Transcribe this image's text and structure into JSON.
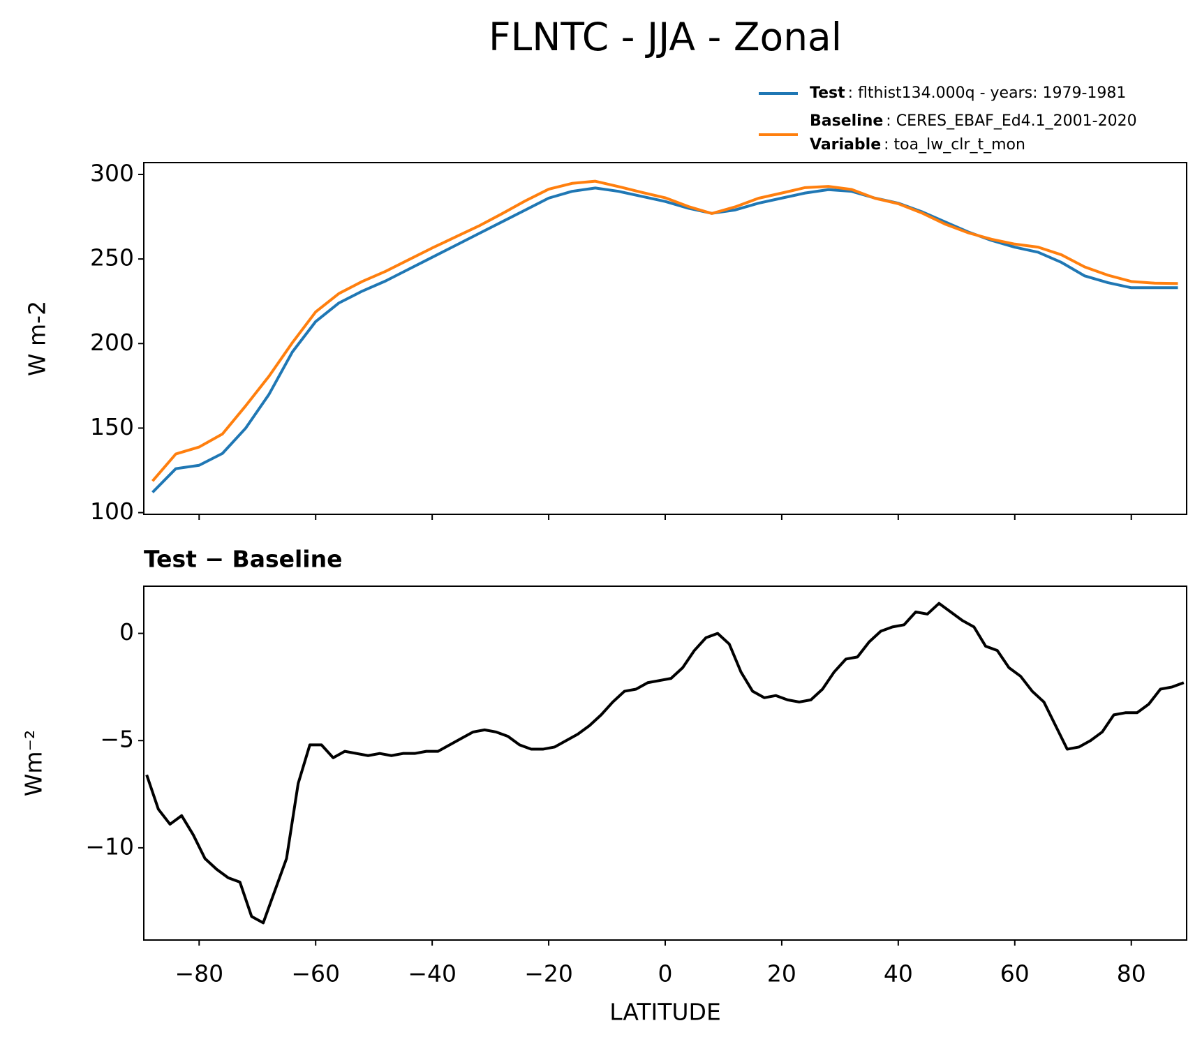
{
  "title": "FLNTC - JJA - Zonal",
  "chart_data": [
    {
      "type": "line",
      "y_label": "W m-2",
      "x": [
        -88,
        -84,
        -80,
        -76,
        -72,
        -68,
        -64,
        -60,
        -56,
        -52,
        -48,
        -44,
        -40,
        -36,
        -32,
        -28,
        -24,
        -20,
        -16,
        -12,
        -8,
        -4,
        0,
        4,
        8,
        12,
        16,
        20,
        24,
        28,
        32,
        36,
        40,
        44,
        48,
        52,
        56,
        60,
        64,
        68,
        72,
        76,
        80,
        84,
        88
      ],
      "series": [
        {
          "name": "Test",
          "description": ": flthist134.000q - years: 1979-1981",
          "color": "#1f77b4",
          "values": [
            112,
            126,
            128,
            135,
            150,
            170,
            195,
            213,
            224,
            231,
            237,
            244,
            251,
            258,
            265,
            272,
            279,
            286,
            290,
            292,
            290,
            287,
            284,
            280,
            277,
            279,
            283,
            286,
            289,
            291,
            290,
            286,
            283,
            278,
            272,
            266,
            261,
            257,
            254,
            248,
            240,
            236,
            233,
            233,
            233
          ]
        },
        {
          "name": "Baseline",
          "description": ": CERES_EBAF_Ed4.1_2001-2020",
          "color": "#ff7f0e",
          "values": [
            118.7,
            134.7,
            138.8,
            146.5,
            163.2,
            180.7,
            200.5,
            218.7,
            229.6,
            236.7,
            242.7,
            249.6,
            256.5,
            263,
            269.5,
            276.8,
            284.4,
            291.3,
            294.7,
            296,
            292.8,
            289.4,
            286.2,
            281,
            276.9,
            280.8,
            285.9,
            289,
            292.2,
            292.9,
            291.1,
            285.9,
            282.7,
            277.3,
            270.7,
            265.5,
            261.7,
            258.8,
            257,
            252.5,
            245.3,
            240.4,
            236.7,
            235.7,
            235.5
          ]
        }
      ],
      "legend_extra": {
        "name": "Variable",
        "description": ": toa_lw_clr_t_mon"
      },
      "xlim": [
        -89.5,
        89.5
      ],
      "xticks": [
        -80,
        -60,
        -40,
        -20,
        0,
        20,
        40,
        60,
        80
      ],
      "ylim": [
        99,
        307
      ],
      "yticks": [
        100,
        150,
        200,
        250,
        300
      ]
    },
    {
      "type": "line",
      "title": "Test − Baseline",
      "y_label": "Wm⁻²",
      "x_label": "LATITUDE",
      "x": [
        -89,
        -87,
        -85,
        -83,
        -81,
        -79,
        -77,
        -75,
        -73,
        -71,
        -69,
        -67,
        -65,
        -63,
        -61,
        -59,
        -57,
        -55,
        -53,
        -51,
        -49,
        -47,
        -45,
        -43,
        -41,
        -39,
        -37,
        -35,
        -33,
        -31,
        -29,
        -27,
        -25,
        -23,
        -21,
        -19,
        -17,
        -15,
        -13,
        -11,
        -9,
        -7,
        -5,
        -3,
        -1,
        1,
        3,
        5,
        7,
        9,
        11,
        13,
        15,
        17,
        19,
        21,
        23,
        25,
        27,
        29,
        31,
        33,
        35,
        37,
        39,
        41,
        43,
        45,
        47,
        49,
        51,
        53,
        55,
        57,
        59,
        61,
        63,
        65,
        67,
        69,
        71,
        73,
        75,
        77,
        79,
        81,
        83,
        85,
        87,
        89
      ],
      "series": [
        {
          "color": "#000000",
          "values": [
            -6.6,
            -8.2,
            -8.9,
            -8.5,
            -9.4,
            -10.5,
            -11.0,
            -11.4,
            -11.6,
            -13.2,
            -13.5,
            -12.0,
            -10.5,
            -7.0,
            -5.2,
            -5.2,
            -5.8,
            -5.5,
            -5.6,
            -5.7,
            -5.6,
            -5.7,
            -5.6,
            -5.6,
            -5.5,
            -5.5,
            -5.2,
            -4.9,
            -4.6,
            -4.5,
            -4.6,
            -4.8,
            -5.2,
            -5.4,
            -5.4,
            -5.3,
            -5.0,
            -4.7,
            -4.3,
            -3.8,
            -3.2,
            -2.7,
            -2.6,
            -2.3,
            -2.2,
            -2.1,
            -1.6,
            -0.8,
            -0.2,
            0.0,
            -0.5,
            -1.8,
            -2.7,
            -3.0,
            -2.9,
            -3.1,
            -3.2,
            -3.1,
            -2.6,
            -1.8,
            -1.2,
            -1.1,
            -0.4,
            0.1,
            0.3,
            0.4,
            1.0,
            0.9,
            1.4,
            1.0,
            0.6,
            0.3,
            -0.6,
            -0.8,
            -1.6,
            -2.0,
            -2.7,
            -3.2,
            -4.3,
            -5.4,
            -5.3,
            -5.0,
            -4.6,
            -3.8,
            -3.7,
            -3.7,
            -3.3,
            -2.6,
            -2.5,
            -2.3
          ]
        }
      ],
      "xlim": [
        -89.5,
        89.5
      ],
      "xticks": [
        {
          "value": -80,
          "label": "−80"
        },
        {
          "value": -60,
          "label": "−60"
        },
        {
          "value": -40,
          "label": "−40"
        },
        {
          "value": -20,
          "label": "−20"
        },
        0,
        20,
        40,
        60,
        80
      ],
      "ylim": [
        -14.3,
        2.2
      ],
      "yticks": [
        {
          "value": -10,
          "label": "−10"
        },
        {
          "value": -5,
          "label": "−5"
        },
        0
      ]
    }
  ]
}
